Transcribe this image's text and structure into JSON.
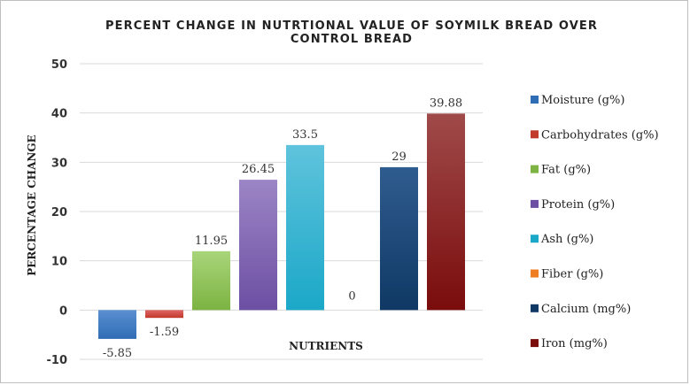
{
  "chart_data": {
    "type": "bar",
    "title_lines": [
      "PERCENT CHANGE IN NUTRTIONAL VALUE OF SOYMILK BREAD OVER",
      "CONTROL BREAD"
    ],
    "xlabel": "NUTRIENTS",
    "ylabel": "PERCENTAGE CHANGE",
    "ylim": [
      -10,
      50
    ],
    "yticks": [
      -10,
      0,
      10,
      20,
      30,
      40,
      50
    ],
    "grid": true,
    "legend_position": "right",
    "series": [
      {
        "name": "Moisture (g%)",
        "value": -5.85,
        "label": "-5.85",
        "color_top": "#5b8fd1",
        "color_bottom": "#2f6db5"
      },
      {
        "name": "Carbohydrates (g%)",
        "value": -1.59,
        "label": "-1.59",
        "color_top": "#e06666",
        "color_bottom": "#c0392b"
      },
      {
        "name": "Fat (g%)",
        "value": 11.95,
        "label": "11.95",
        "color_top": "#a9d57a",
        "color_bottom": "#7cb342"
      },
      {
        "name": "Protein (g%)",
        "value": 26.45,
        "label": "26.45",
        "color_top": "#9c85c6",
        "color_bottom": "#6c4fa3"
      },
      {
        "name": "Ash (g%)",
        "value": 33.5,
        "label": "33.5",
        "color_top": "#5fc3dc",
        "color_bottom": "#1ba8c8"
      },
      {
        "name": "Fiber (g%)",
        "value": 0,
        "label": "0",
        "color_top": "#f5a05a",
        "color_bottom": "#ef7d22"
      },
      {
        "name": "Calcium (mg%)",
        "value": 29,
        "label": "29",
        "color_top": "#2f5c8f",
        "color_bottom": "#0f3864"
      },
      {
        "name": "Iron (mg%)",
        "value": 39.88,
        "label": "39.88",
        "color_top": "#a04a4a",
        "color_bottom": "#7a0c0c"
      }
    ]
  }
}
